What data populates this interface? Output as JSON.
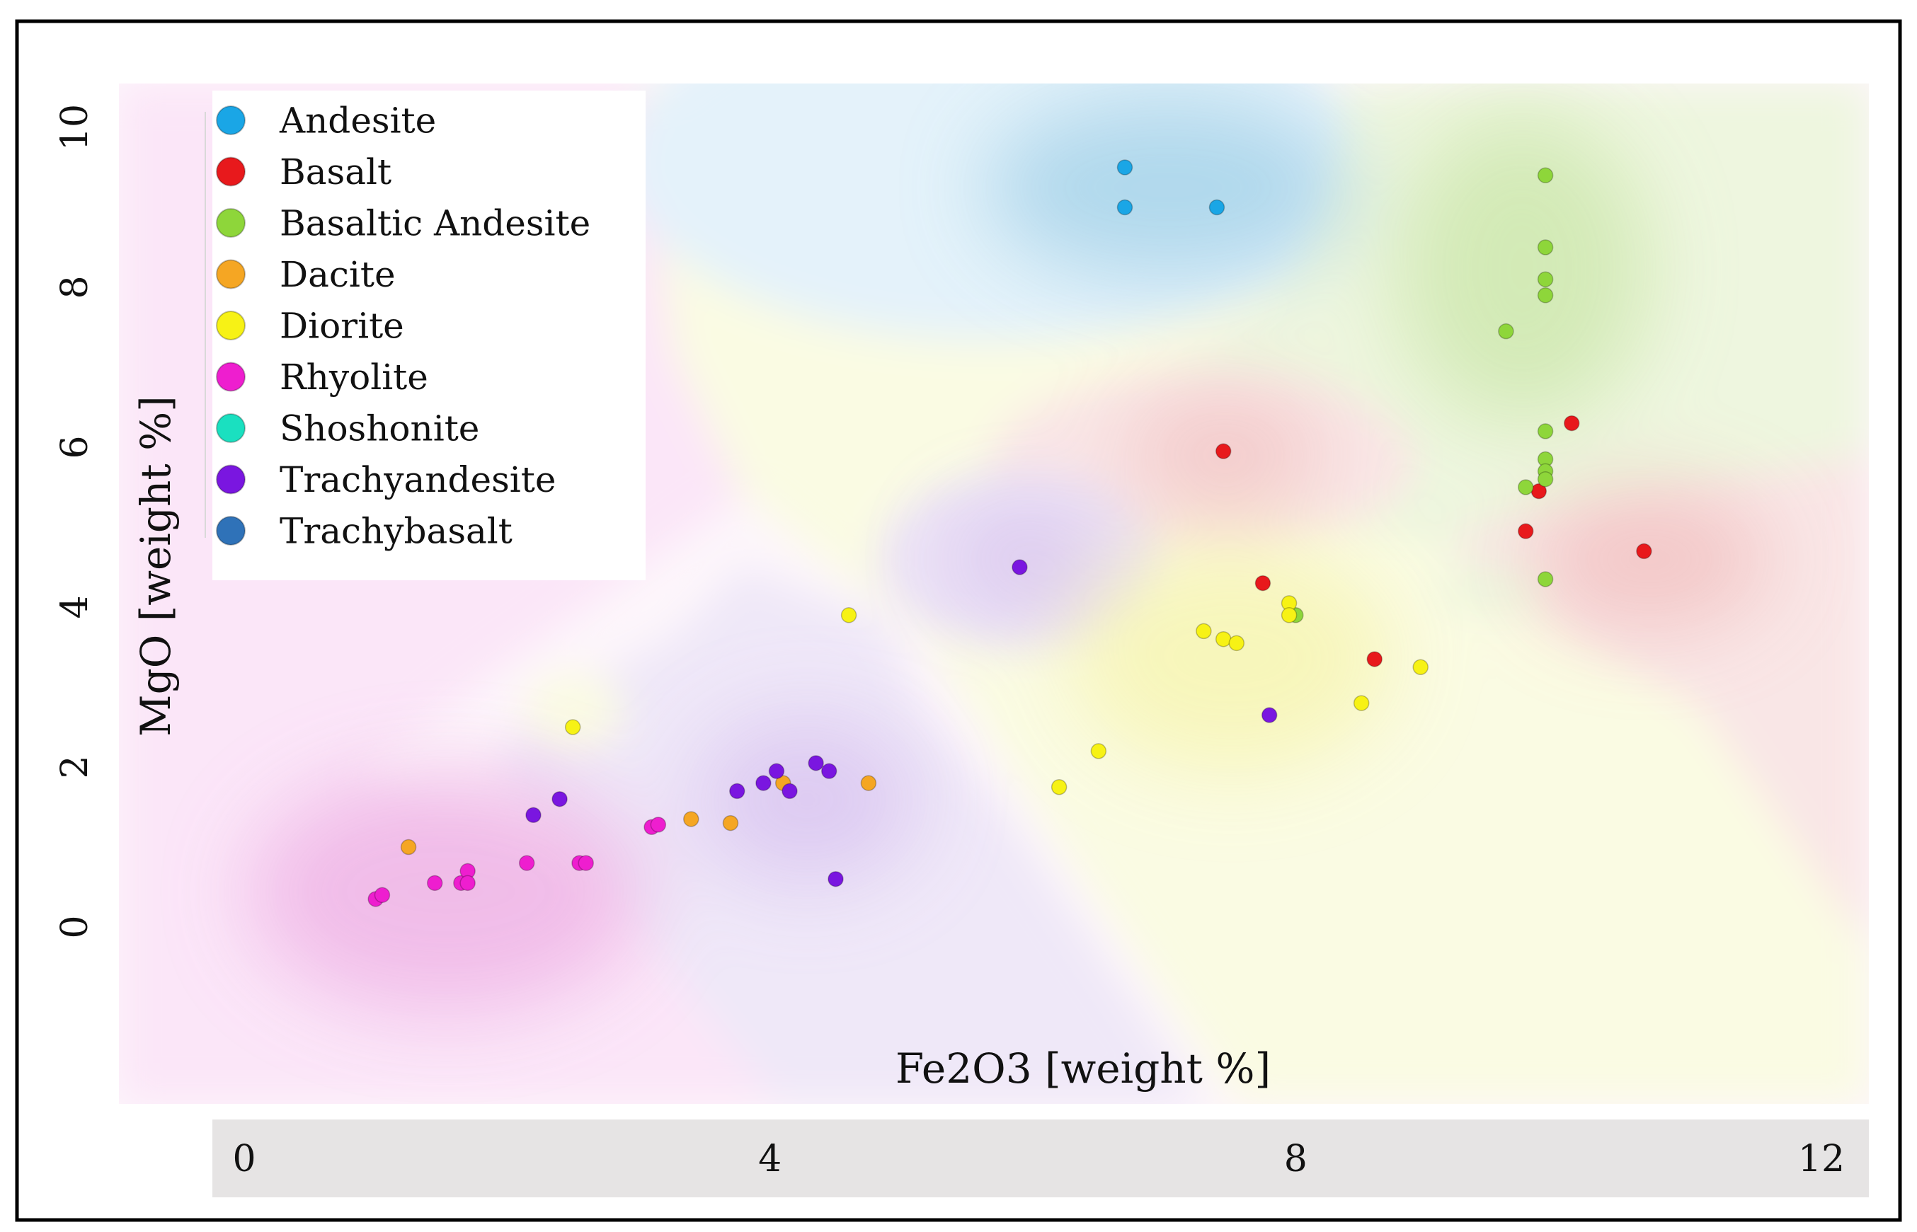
{
  "chart_data": {
    "type": "scatter",
    "title": "",
    "xlabel": "Fe2O3 [weight %]",
    "ylabel": "MgO [weight %]",
    "xlim": [
      -0.9,
      12.2
    ],
    "ylim": [
      -2.2,
      10.5
    ],
    "xticks": [
      0,
      4,
      8,
      12
    ],
    "yticks": [
      0,
      2,
      4,
      6,
      8,
      10
    ],
    "legend_position": "top-left",
    "background": "decision-region shading by rock class",
    "series": [
      {
        "name": "Andesite",
        "color": "#1aa6e6",
        "points": [
          [
            6.7,
            9.5
          ],
          [
            6.7,
            9.0
          ],
          [
            7.4,
            9.0
          ]
        ]
      },
      {
        "name": "Basalt",
        "color": "#e8191c",
        "points": [
          [
            7.45,
            5.95
          ],
          [
            7.75,
            4.3
          ],
          [
            8.6,
            3.35
          ],
          [
            9.75,
            4.95
          ],
          [
            9.85,
            5.45
          ],
          [
            10.1,
            6.3
          ],
          [
            10.65,
            4.7
          ]
        ]
      },
      {
        "name": "Basaltic Andesite",
        "color": "#8ed63a",
        "points": [
          [
            9.9,
            9.4
          ],
          [
            9.9,
            8.5
          ],
          [
            9.9,
            8.1
          ],
          [
            9.9,
            7.9
          ],
          [
            9.6,
            7.45
          ],
          [
            9.9,
            6.2
          ],
          [
            9.9,
            5.85
          ],
          [
            9.9,
            5.7
          ],
          [
            9.9,
            5.6
          ],
          [
            9.75,
            5.5
          ],
          [
            9.9,
            4.35
          ],
          [
            8.0,
            3.9
          ]
        ]
      },
      {
        "name": "Dacite",
        "color": "#f5a623",
        "points": [
          [
            1.25,
            1.0
          ],
          [
            3.4,
            1.35
          ],
          [
            3.7,
            1.3
          ],
          [
            4.1,
            1.8
          ],
          [
            4.75,
            1.8
          ]
        ]
      },
      {
        "name": "Diorite",
        "color": "#f7f215",
        "points": [
          [
            2.5,
            2.5
          ],
          [
            4.6,
            3.9
          ],
          [
            6.2,
            1.75
          ],
          [
            6.5,
            2.2
          ],
          [
            7.3,
            3.7
          ],
          [
            7.45,
            3.6
          ],
          [
            7.55,
            3.55
          ],
          [
            7.95,
            4.05
          ],
          [
            7.95,
            3.9
          ],
          [
            8.5,
            2.8
          ],
          [
            8.95,
            3.25
          ]
        ]
      },
      {
        "name": "Rhyolite",
        "color": "#ee1ecf",
        "points": [
          [
            1.0,
            0.35
          ],
          [
            1.05,
            0.4
          ],
          [
            1.45,
            0.55
          ],
          [
            1.65,
            0.55
          ],
          [
            1.7,
            0.7
          ],
          [
            1.7,
            0.55
          ],
          [
            2.15,
            0.8
          ],
          [
            2.55,
            0.8
          ],
          [
            2.6,
            0.8
          ],
          [
            3.1,
            1.25
          ],
          [
            3.15,
            1.28
          ]
        ]
      },
      {
        "name": "Shoshonite",
        "color": "#1ae0c0",
        "points": []
      },
      {
        "name": "Trachyandesite",
        "color": "#7a16e0",
        "points": [
          [
            2.2,
            1.4
          ],
          [
            2.4,
            1.6
          ],
          [
            3.75,
            1.7
          ],
          [
            3.95,
            1.8
          ],
          [
            4.05,
            1.95
          ],
          [
            4.15,
            1.7
          ],
          [
            4.35,
            2.05
          ],
          [
            4.45,
            1.95
          ],
          [
            4.5,
            0.6
          ],
          [
            5.9,
            4.5
          ],
          [
            7.8,
            2.65
          ]
        ]
      },
      {
        "name": "Trachybasalt",
        "color": "#2f72b8",
        "points": []
      }
    ]
  }
}
